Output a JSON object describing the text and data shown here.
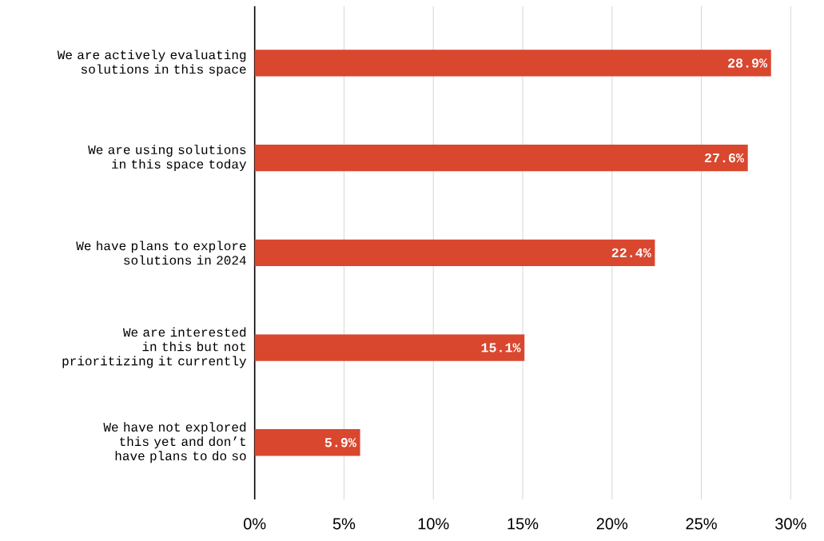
{
  "chart_data": {
    "type": "bar",
    "orientation": "horizontal",
    "categories": [
      "We are actively evaluating solutions in this space",
      "We are using solutions in this space today",
      "We have plans to explore solutions in 2024",
      "We are interested in this but not prioritizing it currently",
      "We have not explored this yet and don’t have plans to do so"
    ],
    "values": [
      28.9,
      27.6,
      22.4,
      15.1,
      5.9
    ],
    "value_labels": [
      "28.9%",
      "27.6%",
      "22.4%",
      "15.1%",
      "5.9%"
    ],
    "color": "#d9472f",
    "xlim": [
      0,
      30
    ],
    "xticks": [
      {
        "value": 0,
        "label": "0%"
      },
      {
        "value": 5,
        "label": "5%"
      },
      {
        "value": 10,
        "label": "10%"
      },
      {
        "value": 15,
        "label": "15%"
      },
      {
        "value": 20,
        "label": "20%"
      },
      {
        "value": 25,
        "label": "25%"
      },
      {
        "value": 30,
        "label": "30%"
      }
    ],
    "grid": "x"
  }
}
